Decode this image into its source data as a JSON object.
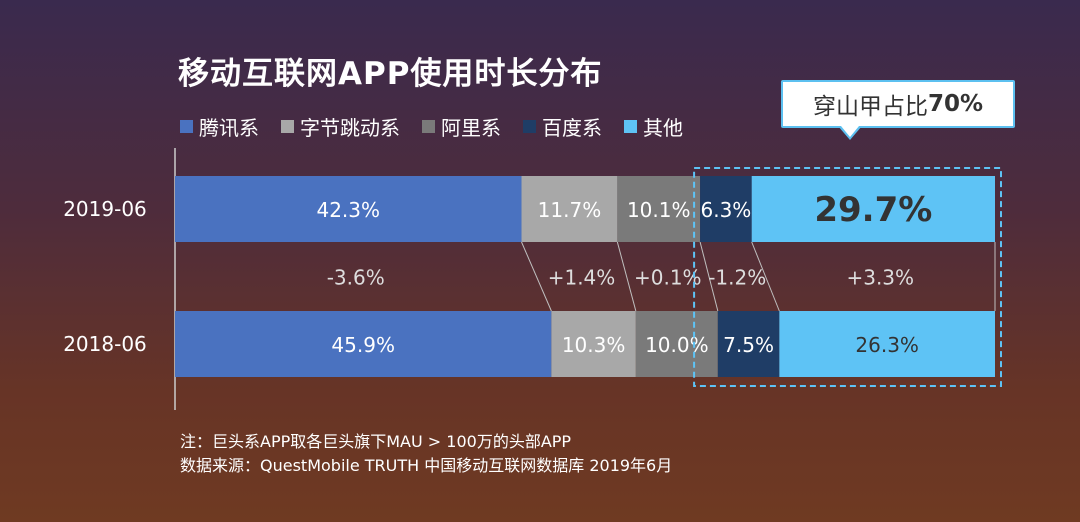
{
  "title": "移动互联网APP使用时长分布",
  "callout": {
    "prefix": "穿山甲占比",
    "value": "70%"
  },
  "notes": [
    "注：巨头系APP取各巨头旗下MAU > 100万的头部APP",
    "数据来源：QuestMobile TRUTH 中国移动互联网数据库 2019年6月"
  ],
  "colors": {
    "腾讯系": "#4a72c0",
    "字节跳动系": "#a8a8a8",
    "阿里系": "#7a7a7a",
    "百度系": "#1f3d66",
    "其他": "#5ec3f5"
  },
  "chart_data": {
    "type": "bar",
    "orientation": "horizontal",
    "stacked": true,
    "normalized": true,
    "categories": [
      "2019-06",
      "2018-06"
    ],
    "series": [
      {
        "name": "腾讯系",
        "values": [
          42.3,
          45.9
        ],
        "labels": [
          "42.3%",
          "45.9%"
        ]
      },
      {
        "name": "字节跳动系",
        "values": [
          11.7,
          10.3
        ],
        "labels": [
          "11.7%",
          "10.3%"
        ]
      },
      {
        "name": "阿里系",
        "values": [
          10.1,
          10.0
        ],
        "labels": [
          "10.1%",
          "10.0%"
        ]
      },
      {
        "name": "百度系",
        "values": [
          6.3,
          7.5
        ],
        "labels": [
          "6.3%",
          "7.5%"
        ]
      },
      {
        "name": "其他",
        "values": [
          29.7,
          26.3
        ],
        "labels": [
          "29.7%",
          "26.3%"
        ]
      }
    ],
    "changes": [
      "-3.6%",
      "+1.4%",
      "+0.1%",
      "-1.2%",
      "+3.3%"
    ],
    "legend": "top-left"
  }
}
